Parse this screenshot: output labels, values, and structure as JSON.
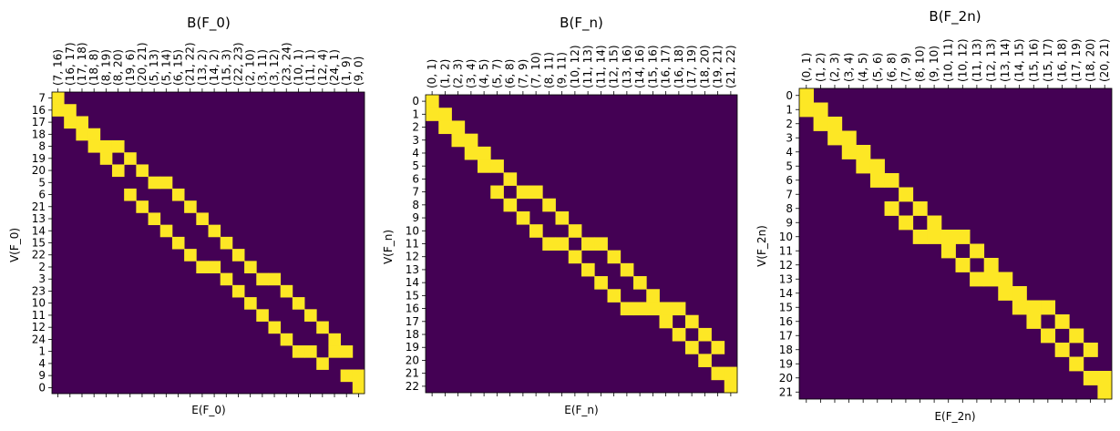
{
  "chart_data": [
    {
      "type": "heatmap",
      "title": "B(F_0)",
      "xlabel": "E(F_0)",
      "ylabel": "V(F_0)",
      "colors": {
        "zero": "#440154",
        "one": "#fde725"
      },
      "rows": [
        "7",
        "16",
        "17",
        "18",
        "8",
        "19",
        "20",
        "5",
        "6",
        "21",
        "13",
        "14",
        "15",
        "22",
        "2",
        "3",
        "23",
        "10",
        "11",
        "12",
        "24",
        "1",
        "4",
        "9",
        "0"
      ],
      "cols": [
        "(7, 16)",
        "(16, 17)",
        "(17, 18)",
        "(18, 8)",
        "(8, 19)",
        "(8, 20)",
        "(19, 6)",
        "(20, 21)",
        "(5, 13)",
        "(5, 14)",
        "(6, 15)",
        "(21, 22)",
        "(13, 2)",
        "(14, 2)",
        "(15, 3)",
        "(22, 23)",
        "(2, 10)",
        "(3, 11)",
        "(3, 12)",
        "(23, 24)",
        "(10, 1)",
        "(11, 1)",
        "(12, 4)",
        "(24, 1)",
        "(1, 9)",
        "(9, 0)"
      ]
    },
    {
      "type": "heatmap",
      "title": "B(F_n)",
      "xlabel": "E(F_n)",
      "ylabel": "V(F_n)",
      "colors": {
        "zero": "#440154",
        "one": "#fde725"
      },
      "rows": [
        "0",
        "1",
        "2",
        "3",
        "4",
        "5",
        "6",
        "7",
        "8",
        "9",
        "10",
        "11",
        "12",
        "13",
        "14",
        "15",
        "16",
        "17",
        "18",
        "19",
        "20",
        "21",
        "22"
      ],
      "cols": [
        "(0, 1)",
        "(1, 2)",
        "(2, 3)",
        "(3, 4)",
        "(4, 5)",
        "(5, 7)",
        "(6, 8)",
        "(7, 9)",
        "(7, 10)",
        "(8, 11)",
        "(9, 11)",
        "(10, 12)",
        "(11, 13)",
        "(11, 14)",
        "(12, 15)",
        "(13, 16)",
        "(14, 16)",
        "(15, 16)",
        "(16, 17)",
        "(16, 18)",
        "(17, 19)",
        "(18, 20)",
        "(19, 21)",
        "(21, 22)"
      ]
    },
    {
      "type": "heatmap",
      "title": "B(F_2n)",
      "xlabel": "E(F_2n)",
      "ylabel": "V(F_2n)",
      "colors": {
        "zero": "#440154",
        "one": "#fde725"
      },
      "rows": [
        "0",
        "1",
        "2",
        "3",
        "4",
        "5",
        "6",
        "7",
        "8",
        "9",
        "10",
        "11",
        "12",
        "13",
        "14",
        "15",
        "16",
        "17",
        "18",
        "19",
        "20",
        "21"
      ],
      "cols": [
        "(0, 1)",
        "(1, 2)",
        "(2, 3)",
        "(3, 4)",
        "(4, 5)",
        "(5, 6)",
        "(6, 8)",
        "(7, 9)",
        "(8, 10)",
        "(9, 10)",
        "(10, 11)",
        "(10, 12)",
        "(11, 13)",
        "(12, 13)",
        "(13, 14)",
        "(14, 15)",
        "(15, 16)",
        "(15, 17)",
        "(16, 18)",
        "(17, 19)",
        "(18, 20)",
        "(20, 21)"
      ]
    }
  ]
}
